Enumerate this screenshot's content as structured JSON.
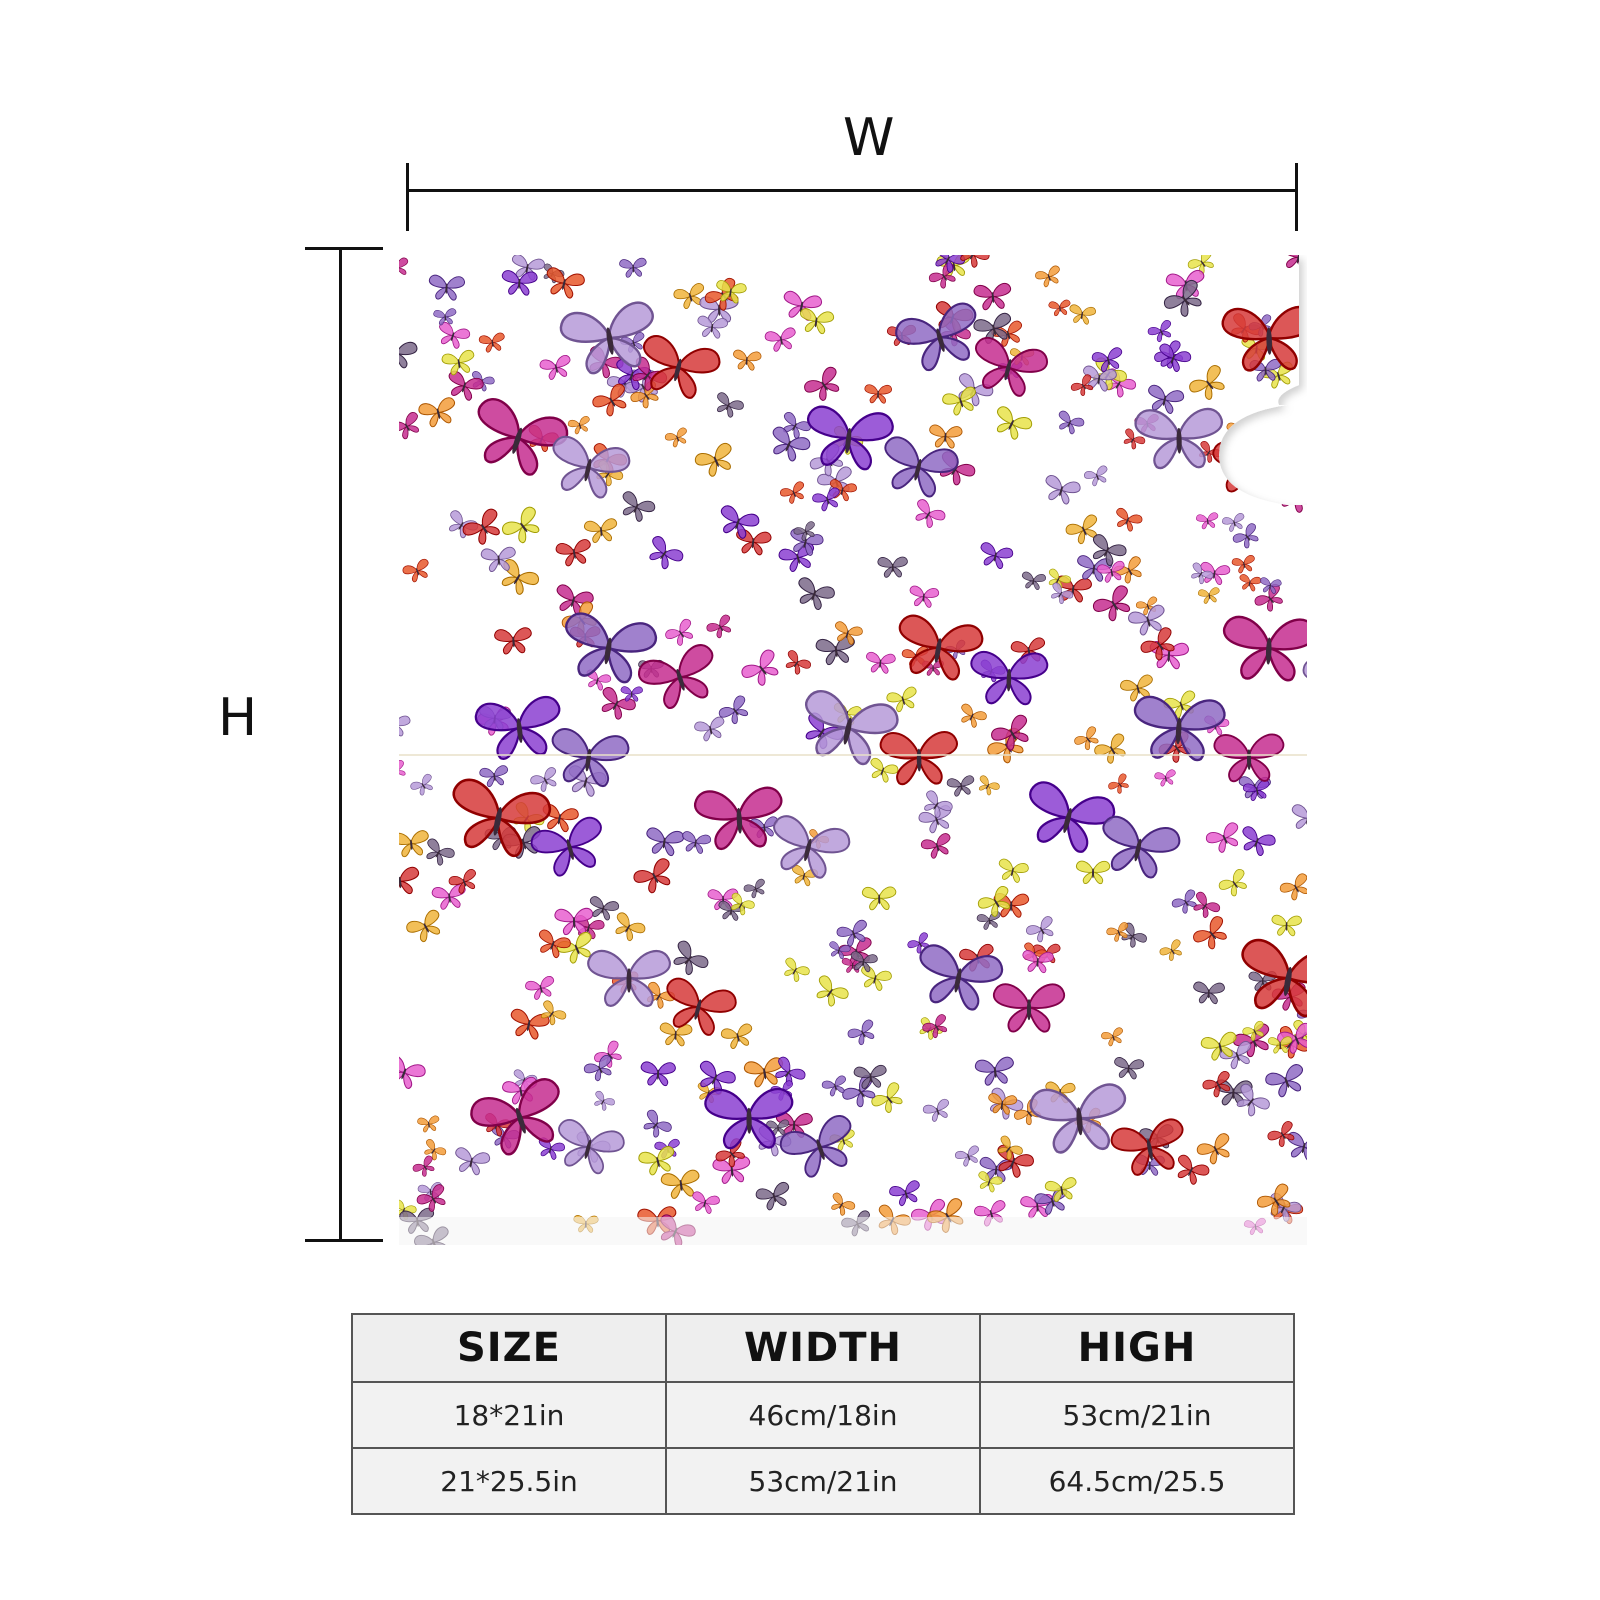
{
  "dimensions": {
    "width_label": "W",
    "height_label": "H"
  },
  "product": {
    "pattern_icon": "butterfly-pattern-icon",
    "colors": [
      "#b69ad8",
      "#8f6bc4",
      "#d63a3a",
      "#c62d8f",
      "#e85fcf",
      "#f39c3a",
      "#f0b43b",
      "#e8e34a",
      "#7b6a8a",
      "#e8582b",
      "#8b3fd1"
    ]
  },
  "size_table": {
    "headers": [
      "SIZE",
      "WIDTH",
      "HIGH"
    ],
    "rows": [
      [
        "18*21in",
        "46cm/18in",
        "53cm/21in"
      ],
      [
        "21*25.5in",
        "53cm/21in",
        "64.5cm/25.5"
      ]
    ]
  }
}
